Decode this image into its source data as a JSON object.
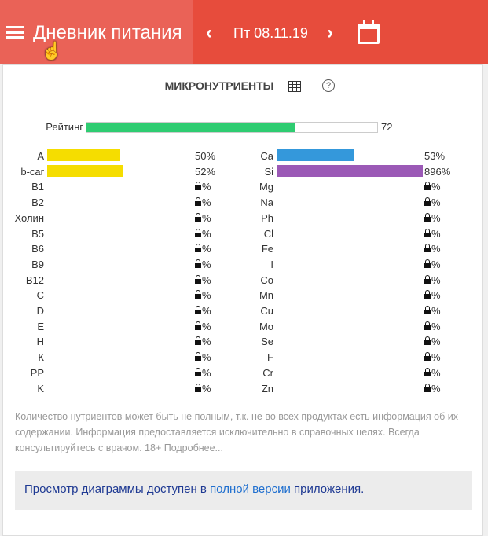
{
  "header": {
    "title": "Дневник питания",
    "date": "Пт 08.11.19",
    "color": "#e74c3c"
  },
  "card": {
    "title": "МИКРОНУТРИЕНТЫ"
  },
  "rating": {
    "label": "Рейтинг",
    "value": 72,
    "max": 100,
    "color": "#2ecc71"
  },
  "left": [
    {
      "label": "A",
      "pct": "50%",
      "value": 50,
      "color": "#f5dd00"
    },
    {
      "label": "b-car",
      "pct": "52%",
      "value": 52,
      "color": "#f5dd00"
    },
    {
      "label": "B1",
      "locked": true
    },
    {
      "label": "B2",
      "locked": true
    },
    {
      "label": "Холин",
      "locked": true
    },
    {
      "label": "B5",
      "locked": true
    },
    {
      "label": "B6",
      "locked": true
    },
    {
      "label": "B9",
      "locked": true
    },
    {
      "label": "B12",
      "locked": true
    },
    {
      "label": "C",
      "locked": true
    },
    {
      "label": "D",
      "locked": true
    },
    {
      "label": "E",
      "locked": true
    },
    {
      "label": "H",
      "locked": true
    },
    {
      "label": "К",
      "locked": true
    },
    {
      "label": "PP",
      "locked": true
    },
    {
      "label": "K",
      "locked": true
    }
  ],
  "right": [
    {
      "label": "Ca",
      "pct": "53%",
      "value": 53,
      "color": "#3498db"
    },
    {
      "label": "Si",
      "pct": "896%",
      "value": 896,
      "color": "#9b59b6"
    },
    {
      "label": "Mg",
      "locked": true
    },
    {
      "label": "Na",
      "locked": true
    },
    {
      "label": "Ph",
      "locked": true
    },
    {
      "label": "Cl",
      "locked": true
    },
    {
      "label": "Fe",
      "locked": true
    },
    {
      "label": "I",
      "locked": true
    },
    {
      "label": "Co",
      "locked": true
    },
    {
      "label": "Mn",
      "locked": true
    },
    {
      "label": "Cu",
      "locked": true
    },
    {
      "label": "Mo",
      "locked": true
    },
    {
      "label": "Se",
      "locked": true
    },
    {
      "label": "F",
      "locked": true
    },
    {
      "label": "Cr",
      "locked": true
    },
    {
      "label": "Zn",
      "locked": true
    }
  ],
  "locked_suffix": "%",
  "note": "Количество нутриентов может быть не полным, т.к. не во всех продуктах есть информация об их содержании. Информация предоставляется исключительно в справочных целях. Всегда консультируйтесь с врачом. 18+ Подробнее...",
  "promo": {
    "before": "Просмотр диаграммы доступен в ",
    "link": "полной версии",
    "after": " приложения."
  }
}
